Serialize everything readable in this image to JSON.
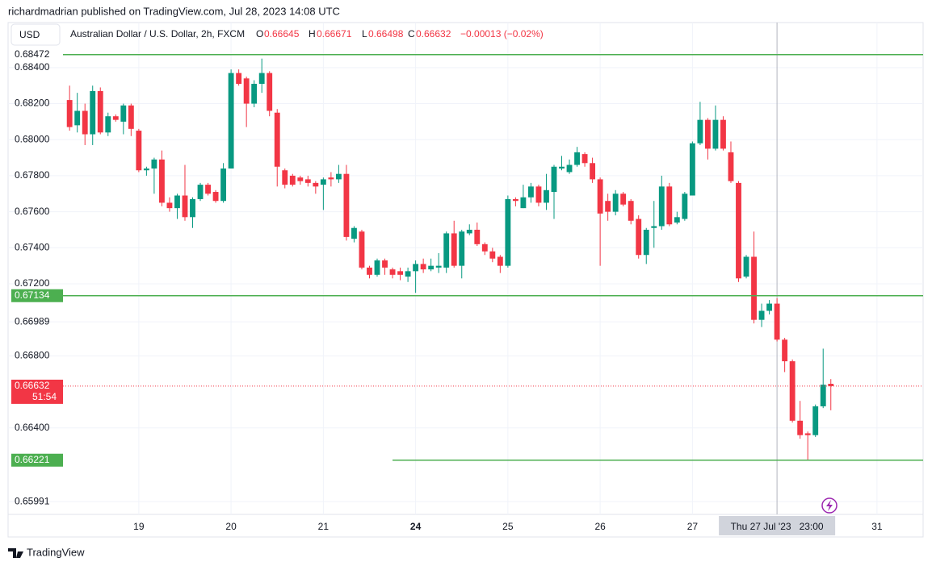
{
  "header": {
    "published": "richardmadrian published on TradingView.com, Jul 28, 2023 14:08 UTC",
    "currency": "USD"
  },
  "legend": {
    "name": "Australian Dollar / U.S. Dollar, 2h, FXCM",
    "labels": [
      "O",
      "H",
      "L",
      "C"
    ],
    "values": [
      0.66645,
      0.66671,
      0.66498,
      0.66632
    ],
    "change": "−0.00013 (−0.02%)"
  },
  "footer": {
    "brand": "TradingView"
  },
  "chart_data": {
    "type": "candlestick",
    "up_color": "#089981",
    "down_color": "#f23645",
    "x": [
      0,
      1,
      2,
      3,
      4,
      5,
      6,
      7,
      8,
      9,
      10,
      11,
      12,
      13,
      14,
      15,
      16,
      17,
      18,
      19,
      20,
      21,
      22,
      23,
      24,
      25,
      26,
      27,
      28,
      29,
      30,
      31,
      32,
      33,
      34,
      35,
      36,
      37,
      38,
      39,
      40,
      41,
      42,
      43,
      44,
      45,
      46,
      47,
      48,
      49,
      50,
      51,
      52,
      53,
      54,
      55,
      56,
      57,
      58,
      59,
      60,
      61,
      62,
      63,
      64,
      65,
      66,
      67,
      68,
      69,
      70,
      71,
      72,
      73,
      74,
      75,
      76,
      77,
      78,
      79,
      80,
      81,
      82,
      83,
      84,
      85,
      86,
      87,
      88,
      89,
      90,
      91,
      92,
      93,
      94,
      95,
      96,
      97,
      98,
      99
    ],
    "open": [
      0.6822,
      0.6808,
      0.6816,
      0.6803,
      0.6827,
      0.6804,
      0.6813,
      0.681,
      0.6819,
      0.6805,
      0.6783,
      0.6784,
      0.6789,
      0.6765,
      0.6762,
      0.6769,
      0.6757,
      0.6767,
      0.6775,
      0.6771,
      0.6766,
      0.6784,
      0.6837,
      0.6834,
      0.682,
      0.6831,
      0.6837,
      0.6815,
      0.6783,
      0.678,
      0.6779,
      0.6778,
      0.6776,
      0.6775,
      0.6779,
      0.6778,
      0.6781,
      0.6745,
      0.6749,
      0.6729,
      0.6725,
      0.6733,
      0.6728,
      0.6727,
      0.6724,
      0.6727,
      0.6731,
      0.6728,
      0.6729,
      0.6729,
      0.6748,
      0.673,
      0.6748,
      0.675,
      0.6742,
      0.6738,
      0.6735,
      0.673,
      0.6767,
      0.6762,
      0.6768,
      0.6774,
      0.6765,
      0.6771,
      0.6784,
      0.6782,
      0.6786,
      0.6792,
      0.6787,
      0.6778,
      0.6766,
      0.676,
      0.677,
      0.6766,
      0.6756,
      0.6736,
      0.6751,
      0.6752,
      0.6774,
      0.6754,
      0.6756,
      0.6769,
      0.6798,
      0.6811,
      0.6795,
      0.6811,
      0.6793,
      0.6776,
      0.6724,
      0.6735,
      0.67,
      0.6705,
      0.6709,
      0.6689,
      0.6677,
      0.6644,
      0.6637,
      0.6636,
      0.6652,
      0.66645
    ],
    "high": [
      0.683,
      0.6826,
      0.682,
      0.683,
      0.6829,
      0.6815,
      0.6814,
      0.682,
      0.682,
      0.6806,
      0.6785,
      0.679,
      0.6794,
      0.6768,
      0.677,
      0.6786,
      0.6768,
      0.6776,
      0.6776,
      0.6772,
      0.6787,
      0.6839,
      0.6839,
      0.6835,
      0.6833,
      0.6845,
      0.6838,
      0.6817,
      0.6784,
      0.6781,
      0.678,
      0.678,
      0.6777,
      0.6779,
      0.6782,
      0.6786,
      0.6786,
      0.6752,
      0.675,
      0.673,
      0.6734,
      0.6734,
      0.6729,
      0.6729,
      0.6729,
      0.6733,
      0.6734,
      0.6734,
      0.6737,
      0.6749,
      0.6755,
      0.675,
      0.6753,
      0.6754,
      0.6743,
      0.674,
      0.6736,
      0.6769,
      0.6768,
      0.6775,
      0.6776,
      0.6775,
      0.6781,
      0.6786,
      0.6791,
      0.6789,
      0.6796,
      0.6793,
      0.679,
      0.6779,
      0.677,
      0.6772,
      0.6771,
      0.6767,
      0.6758,
      0.6751,
      0.6766,
      0.678,
      0.6776,
      0.676,
      0.6771,
      0.6799,
      0.6821,
      0.6812,
      0.6819,
      0.6813,
      0.6799,
      0.6777,
      0.6736,
      0.6749,
      0.6709,
      0.6711,
      0.6712,
      0.669,
      0.6678,
      0.6655,
      0.6638,
      0.6653,
      0.6684,
      0.66671
    ],
    "low": [
      0.6805,
      0.6804,
      0.6797,
      0.6797,
      0.6803,
      0.6802,
      0.681,
      0.6803,
      0.6802,
      0.6782,
      0.678,
      0.677,
      0.6763,
      0.676,
      0.6756,
      0.6755,
      0.6751,
      0.6766,
      0.6769,
      0.6765,
      0.6765,
      0.6784,
      0.683,
      0.6807,
      0.6818,
      0.6826,
      0.6813,
      0.6774,
      0.6773,
      0.6774,
      0.6775,
      0.6774,
      0.677,
      0.6761,
      0.6774,
      0.6776,
      0.6744,
      0.6743,
      0.6728,
      0.6723,
      0.6724,
      0.6725,
      0.6723,
      0.6722,
      0.6721,
      0.6715,
      0.6726,
      0.6727,
      0.6726,
      0.6726,
      0.6729,
      0.6723,
      0.6747,
      0.6741,
      0.6736,
      0.6732,
      0.6726,
      0.6729,
      0.6763,
      0.6762,
      0.6765,
      0.6763,
      0.6761,
      0.6756,
      0.6783,
      0.6781,
      0.6785,
      0.6785,
      0.6776,
      0.673,
      0.6755,
      0.6758,
      0.6763,
      0.6753,
      0.6734,
      0.6731,
      0.674,
      0.675,
      0.6752,
      0.6753,
      0.6755,
      0.6769,
      0.6797,
      0.6789,
      0.6794,
      0.6794,
      0.6776,
      0.6721,
      0.6723,
      0.6698,
      0.6696,
      0.6703,
      0.6688,
      0.6671,
      0.6643,
      0.6634,
      0.6622,
      0.6635,
      0.6651,
      0.66498
    ],
    "close": [
      0.6807,
      0.6816,
      0.6803,
      0.6827,
      0.6804,
      0.6813,
      0.6811,
      0.6819,
      0.6806,
      0.6783,
      0.6784,
      0.6789,
      0.6765,
      0.6762,
      0.6769,
      0.6757,
      0.6767,
      0.6775,
      0.677,
      0.6766,
      0.6784,
      0.6837,
      0.6831,
      0.682,
      0.6831,
      0.6837,
      0.6816,
      0.6785,
      0.6775,
      0.6775,
      0.6777,
      0.6776,
      0.6774,
      0.6778,
      0.6778,
      0.6781,
      0.6746,
      0.6751,
      0.6729,
      0.6725,
      0.6733,
      0.6729,
      0.6725,
      0.6725,
      0.6727,
      0.6731,
      0.6728,
      0.673,
      0.673,
      0.6748,
      0.673,
      0.6749,
      0.675,
      0.6742,
      0.6738,
      0.6734,
      0.673,
      0.6767,
      0.6766,
      0.6768,
      0.6774,
      0.6765,
      0.6772,
      0.6785,
      0.6785,
      0.6786,
      0.6793,
      0.6787,
      0.6778,
      0.6759,
      0.676,
      0.677,
      0.6764,
      0.6755,
      0.6736,
      0.675,
      0.6752,
      0.6774,
      0.6753,
      0.6757,
      0.677,
      0.6798,
      0.6811,
      0.6795,
      0.6811,
      0.6795,
      0.6777,
      0.6723,
      0.6735,
      0.67,
      0.6705,
      0.6709,
      0.6689,
      0.6677,
      0.6644,
      0.6636,
      0.6636,
      0.6652,
      0.6664,
      0.66632
    ],
    "xlim": [
      -8,
      111
    ],
    "xticks": [
      {
        "value": 9,
        "label": "19"
      },
      {
        "value": 21,
        "label": "20"
      },
      {
        "value": 33,
        "label": "21"
      },
      {
        "value": 45,
        "label": "24",
        "bold": true
      },
      {
        "value": 57,
        "label": "25"
      },
      {
        "value": 69,
        "label": "26"
      },
      {
        "value": 81,
        "label": "27"
      },
      {
        "value": 105,
        "label": "31"
      }
    ],
    "ylim": [
      0.6592,
      0.6865
    ],
    "yticks": [
      {
        "value": 0.684,
        "label": "0.68400"
      },
      {
        "value": 0.682,
        "label": "0.68200"
      },
      {
        "value": 0.68,
        "label": "0.68000"
      },
      {
        "value": 0.678,
        "label": "0.67800"
      },
      {
        "value": 0.676,
        "label": "0.67600"
      },
      {
        "value": 0.674,
        "label": "0.67400"
      },
      {
        "value": 0.672,
        "label": "0.67200"
      },
      {
        "value": 0.66989,
        "label": "0.66989"
      },
      {
        "value": 0.668,
        "label": "0.66800"
      },
      {
        "value": 0.664,
        "label": "0.66400"
      },
      {
        "value": 0.65991,
        "label": "0.65991"
      }
    ],
    "grid": true,
    "lines": [
      {
        "value": 0.68472,
        "label": "0.68472",
        "badge": false
      },
      {
        "value": 0.67134,
        "label": "0.67134",
        "badge": true
      },
      {
        "value": 0.66221,
        "label": "0.66221",
        "badge": true,
        "x_start": 42
      }
    ],
    "line_color": "#4caf50",
    "last_price": {
      "value": 0.66632,
      "label": "0.66632",
      "countdown": "51:54"
    },
    "crosshair": {
      "x": 92,
      "label": "Thu 27 Jul '23   23:00"
    }
  }
}
